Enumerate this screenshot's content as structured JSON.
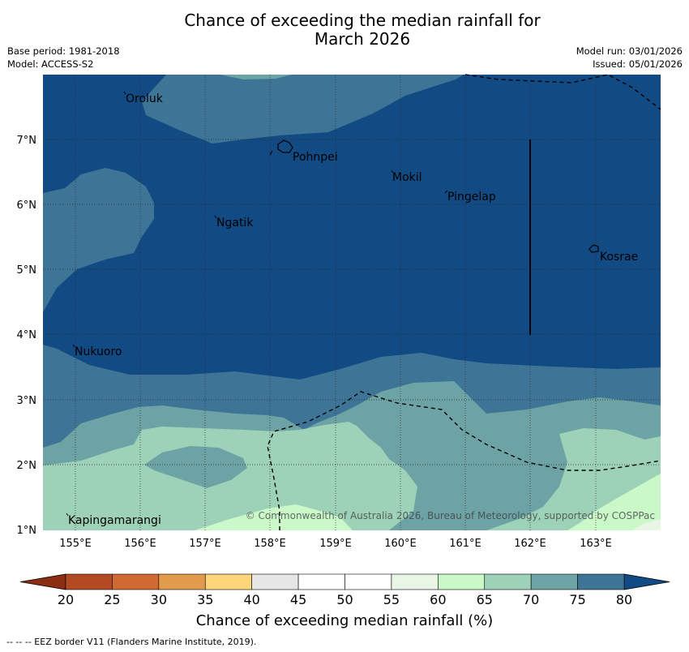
{
  "header": {
    "title_line1": "Chance of exceeding the median rainfall for",
    "title_line2": "March 2026",
    "base_period": "Base period: 1981-2018",
    "model": "Model: ACCESS-S2",
    "model_run": "Model run: 03/01/2026",
    "issued": "Issued: 05/01/2026"
  },
  "map": {
    "lon_labels": [
      "155°E",
      "156°E",
      "157°E",
      "158°E",
      "159°E",
      "160°E",
      "161°E",
      "162°E",
      "163°E"
    ],
    "lat_labels": [
      "7°N",
      "6°N",
      "5°N",
      "4°N",
      "3°N",
      "2°N",
      "1°N"
    ],
    "places": [
      {
        "name": "Oroluk"
      },
      {
        "name": "Pohnpei"
      },
      {
        "name": "Mokil"
      },
      {
        "name": "Pingelap"
      },
      {
        "name": "Ngatik"
      },
      {
        "name": "Kosrae"
      },
      {
        "name": "Nukuoro"
      },
      {
        "name": "Kapingamarangi"
      }
    ],
    "copyright": "© Commonwealth of Australia 2026, Bureau of Meteorology, supported by COSPPac"
  },
  "colorbar": {
    "ticks": [
      "20",
      "25",
      "30",
      "35",
      "40",
      "45",
      "50",
      "55",
      "60",
      "65",
      "70",
      "75",
      "80"
    ],
    "colors": [
      "#b34a24",
      "#cf6a33",
      "#e29a4d",
      "#fdd57a",
      "#e6e6e6",
      "#ffffff",
      "#ffffff",
      "#e9f6e6",
      "#caf8c8",
      "#9dd1b8",
      "#6da3a4",
      "#3e7596"
    ],
    "low_color": "#8b2e12",
    "high_color": "#124a84",
    "label": "Chance of exceeding median rainfall (%)"
  },
  "footer": {
    "eez_note": "-- -- -- EEZ border V11 (Flanders Marine Institute, 2019)."
  },
  "colors": {
    "c80": "#124a84",
    "c75": "#3e7596",
    "c70": "#6da3a4",
    "c65": "#9dd1b8",
    "c60": "#caf8c8"
  }
}
